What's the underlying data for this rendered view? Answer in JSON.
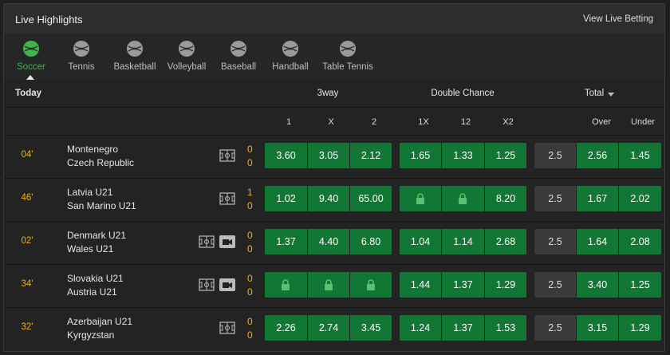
{
  "header": {
    "title": "Live Highlights",
    "link": "View Live Betting"
  },
  "sports": [
    "Soccer",
    "Tennis",
    "Basketball",
    "Volleyball",
    "Baseball",
    "Handball",
    "Table Tennis"
  ],
  "columns": {
    "today": "Today",
    "groups": [
      "3way",
      "Double Chance",
      "Total"
    ],
    "sub": [
      "1",
      "X",
      "2",
      "1X",
      "12",
      "X2",
      "Over",
      "Under"
    ]
  },
  "matches": [
    {
      "time": "04'",
      "home": "Montenegro",
      "away": "Czech Republic",
      "score": [
        0,
        0
      ],
      "has_video": false,
      "three_way": [
        "3.60",
        "3.05",
        "2.12"
      ],
      "double_chance": [
        "1.65",
        "1.33",
        "1.25"
      ],
      "total": [
        "2.5",
        "2.56",
        "1.45"
      ]
    },
    {
      "time": "46'",
      "home": "Latvia U21",
      "away": "San Marino U21",
      "score": [
        1,
        0
      ],
      "has_video": false,
      "three_way": [
        "1.02",
        "9.40",
        "65.00"
      ],
      "double_chance": [
        null,
        null,
        "8.20"
      ],
      "total": [
        "2.5",
        "1.67",
        "2.02"
      ]
    },
    {
      "time": "02'",
      "home": "Denmark U21",
      "away": "Wales U21",
      "score": [
        0,
        0
      ],
      "has_video": true,
      "three_way": [
        "1.37",
        "4.40",
        "6.80"
      ],
      "double_chance": [
        "1.04",
        "1.14",
        "2.68"
      ],
      "total": [
        "2.5",
        "1.64",
        "2.08"
      ]
    },
    {
      "time": "34'",
      "home": "Slovakia U21",
      "away": "Austria U21",
      "score": [
        0,
        0
      ],
      "has_video": true,
      "three_way": [
        null,
        null,
        null
      ],
      "double_chance": [
        "1.44",
        "1.37",
        "1.29"
      ],
      "total": [
        "2.5",
        "3.40",
        "1.25"
      ]
    },
    {
      "time": "32'",
      "home": "Azerbaijan U21",
      "away": "Kyrgyzstan",
      "score": [
        0,
        0
      ],
      "has_video": false,
      "three_way": [
        "2.26",
        "2.74",
        "3.45"
      ],
      "double_chance": [
        "1.24",
        "1.37",
        "1.53"
      ],
      "total": [
        "2.5",
        "3.15",
        "1.29"
      ]
    }
  ]
}
